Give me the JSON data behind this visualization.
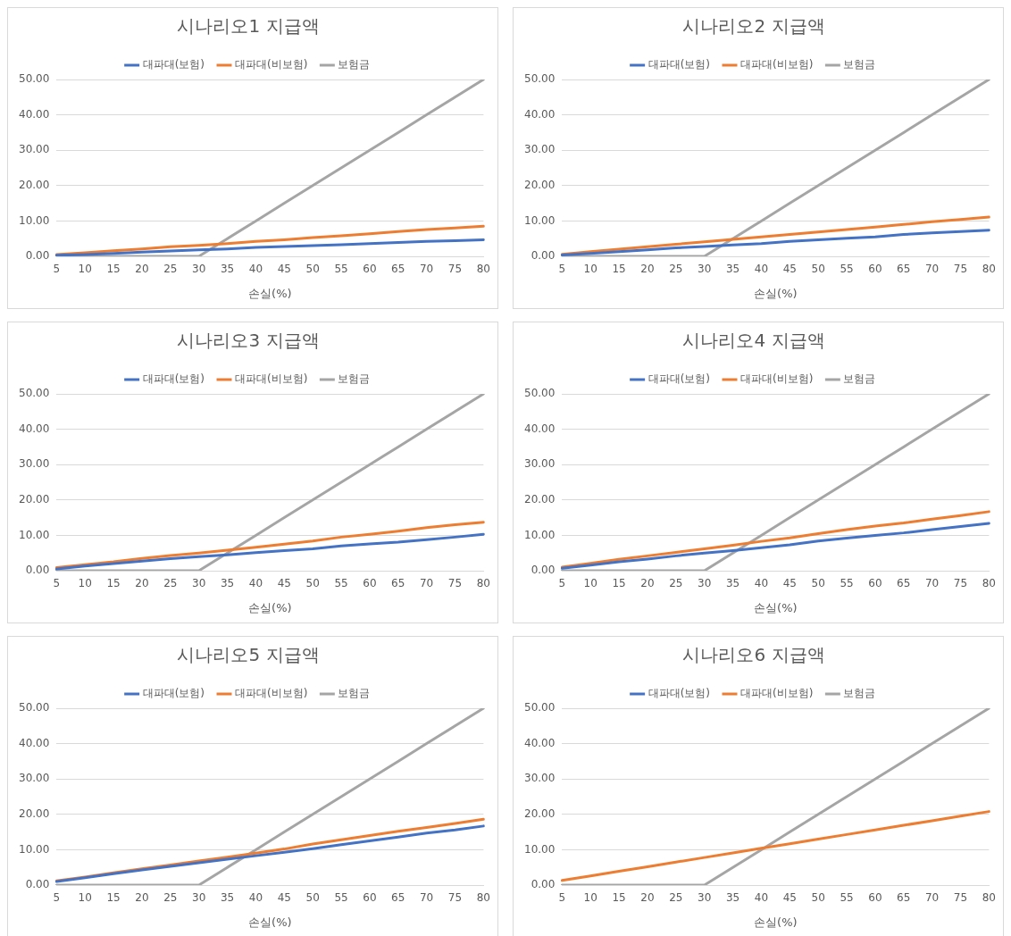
{
  "chart_data": [
    {
      "type": "line",
      "title": "시나리오1 지급액",
      "xlabel": "손실(%)",
      "categories": [
        "5",
        "10",
        "15",
        "20",
        "25",
        "30",
        "35",
        "40",
        "45",
        "50",
        "55",
        "60",
        "65",
        "70",
        "75",
        "80"
      ],
      "ylim": [
        0,
        50
      ],
      "yticks": [
        {
          "value": 0,
          "label": "0.00"
        },
        {
          "value": 10,
          "label": "10.00"
        },
        {
          "value": 20,
          "label": "20.00"
        },
        {
          "value": 30,
          "label": "30.00"
        },
        {
          "value": 40,
          "label": "40.00"
        },
        {
          "value": 50,
          "label": "50.00"
        }
      ],
      "grid": "y",
      "legend": "top",
      "marker": "none",
      "line_style": "solid",
      "series": [
        {
          "name": "대파대(보험)",
          "color": "#4472c4",
          "values": [
            0.3,
            0.5,
            0.8,
            1.2,
            1.5,
            1.8,
            2.1,
            2.5,
            2.8,
            3.0,
            3.3,
            3.6,
            3.9,
            4.2,
            4.4,
            4.7
          ]
        },
        {
          "name": "대파대(비보험)",
          "color": "#ed7d31",
          "values": [
            0.5,
            1.0,
            1.6,
            2.1,
            2.7,
            3.1,
            3.6,
            4.2,
            4.7,
            5.3,
            5.8,
            6.4,
            7.0,
            7.6,
            8.0,
            8.5
          ]
        },
        {
          "name": "보험금",
          "color": "#a5a5a5",
          "values": [
            0,
            0,
            0,
            0,
            0,
            0,
            5,
            10,
            15,
            20,
            25,
            30,
            35,
            40,
            45,
            50
          ]
        }
      ]
    },
    {
      "type": "line",
      "title": "시나리오2 지급액",
      "xlabel": "손실(%)",
      "categories": [
        "5",
        "10",
        "15",
        "20",
        "25",
        "30",
        "35",
        "40",
        "45",
        "50",
        "55",
        "60",
        "65",
        "70",
        "75",
        "80"
      ],
      "ylim": [
        0,
        50
      ],
      "yticks": [
        {
          "value": 0,
          "label": "0.00"
        },
        {
          "value": 10,
          "label": "10.00"
        },
        {
          "value": 20,
          "label": "20.00"
        },
        {
          "value": 30,
          "label": "30.00"
        },
        {
          "value": 40,
          "label": "40.00"
        },
        {
          "value": 50,
          "label": "50.00"
        }
      ],
      "grid": "y",
      "legend": "top",
      "marker": "none",
      "line_style": "solid",
      "series": [
        {
          "name": "대파대(보험)",
          "color": "#4472c4",
          "values": [
            0.4,
            0.8,
            1.3,
            1.8,
            2.4,
            2.8,
            3.2,
            3.6,
            4.2,
            4.7,
            5.1,
            5.5,
            6.2,
            6.6,
            7.0,
            7.4
          ]
        },
        {
          "name": "대파대(비보험)",
          "color": "#ed7d31",
          "values": [
            0.6,
            1.3,
            2.0,
            2.7,
            3.4,
            4.1,
            4.8,
            5.5,
            6.2,
            6.9,
            7.6,
            8.3,
            9.0,
            9.8,
            10.4,
            11.1
          ]
        },
        {
          "name": "보험금",
          "color": "#a5a5a5",
          "values": [
            0,
            0,
            0,
            0,
            0,
            0,
            5,
            10,
            15,
            20,
            25,
            30,
            35,
            40,
            45,
            50
          ]
        }
      ]
    },
    {
      "type": "line",
      "title": "시나리오3 지급액",
      "xlabel": "손실(%)",
      "categories": [
        "5",
        "10",
        "15",
        "20",
        "25",
        "30",
        "35",
        "40",
        "45",
        "50",
        "55",
        "60",
        "65",
        "70",
        "75",
        "80"
      ],
      "ylim": [
        0,
        50
      ],
      "yticks": [
        {
          "value": 0,
          "label": "0.00"
        },
        {
          "value": 10,
          "label": "10.00"
        },
        {
          "value": 20,
          "label": "20.00"
        },
        {
          "value": 30,
          "label": "30.00"
        },
        {
          "value": 40,
          "label": "40.00"
        },
        {
          "value": 50,
          "label": "50.00"
        }
      ],
      "grid": "y",
      "legend": "top",
      "marker": "none",
      "line_style": "solid",
      "series": [
        {
          "name": "대파대(보험)",
          "color": "#4472c4",
          "values": [
            0.5,
            1.3,
            2.0,
            2.7,
            3.4,
            4.0,
            4.5,
            5.1,
            5.7,
            6.2,
            7.0,
            7.6,
            8.1,
            8.8,
            9.5,
            10.3
          ]
        },
        {
          "name": "대파대(비보험)",
          "color": "#ed7d31",
          "values": [
            0.9,
            1.7,
            2.5,
            3.5,
            4.3,
            5.0,
            5.8,
            6.6,
            7.5,
            8.4,
            9.5,
            10.3,
            11.2,
            12.2,
            13.0,
            13.7
          ]
        },
        {
          "name": "보험금",
          "color": "#a5a5a5",
          "values": [
            0,
            0,
            0,
            0,
            0,
            0,
            5,
            10,
            15,
            20,
            25,
            30,
            35,
            40,
            45,
            50
          ]
        }
      ]
    },
    {
      "type": "line",
      "title": "시나리오4 지급액",
      "xlabel": "손실(%)",
      "categories": [
        "5",
        "10",
        "15",
        "20",
        "25",
        "30",
        "35",
        "40",
        "45",
        "50",
        "55",
        "60",
        "65",
        "70",
        "75",
        "80"
      ],
      "ylim": [
        0,
        50
      ],
      "yticks": [
        {
          "value": 0,
          "label": "0.00"
        },
        {
          "value": 10,
          "label": "10.00"
        },
        {
          "value": 20,
          "label": "20.00"
        },
        {
          "value": 30,
          "label": "30.00"
        },
        {
          "value": 40,
          "label": "40.00"
        },
        {
          "value": 50,
          "label": "50.00"
        }
      ],
      "grid": "y",
      "legend": "top",
      "marker": "none",
      "line_style": "solid",
      "series": [
        {
          "name": "대파대(보험)",
          "color": "#4472c4",
          "values": [
            0.7,
            1.6,
            2.5,
            3.3,
            4.2,
            5.0,
            5.7,
            6.5,
            7.3,
            8.4,
            9.2,
            10.0,
            10.7,
            11.6,
            12.5,
            13.4
          ]
        },
        {
          "name": "대파대(비보험)",
          "color": "#ed7d31",
          "values": [
            1.0,
            2.1,
            3.2,
            4.2,
            5.2,
            6.2,
            7.2,
            8.3,
            9.3,
            10.5,
            11.6,
            12.6,
            13.5,
            14.6,
            15.6,
            16.7
          ]
        },
        {
          "name": "보험금",
          "color": "#a5a5a5",
          "values": [
            0,
            0,
            0,
            0,
            0,
            0,
            5,
            10,
            15,
            20,
            25,
            30,
            35,
            40,
            45,
            50
          ]
        }
      ]
    },
    {
      "type": "line",
      "title": "시나리오5 지급액",
      "xlabel": "손실(%)",
      "categories": [
        "5",
        "10",
        "15",
        "20",
        "25",
        "30",
        "35",
        "40",
        "45",
        "50",
        "55",
        "60",
        "65",
        "70",
        "75",
        "80"
      ],
      "ylim": [
        0,
        50
      ],
      "yticks": [
        {
          "value": 0,
          "label": "0.00"
        },
        {
          "value": 10,
          "label": "10.00"
        },
        {
          "value": 20,
          "label": "20.00"
        },
        {
          "value": 30,
          "label": "30.00"
        },
        {
          "value": 40,
          "label": "40.00"
        },
        {
          "value": 50,
          "label": "50.00"
        }
      ],
      "grid": "y",
      "legend": "top",
      "marker": "none",
      "line_style": "solid",
      "series": [
        {
          "name": "대파대(보험)",
          "color": "#4472c4",
          "values": [
            1.0,
            2.1,
            3.2,
            4.3,
            5.3,
            6.3,
            7.3,
            8.3,
            9.3,
            10.3,
            11.4,
            12.5,
            13.6,
            14.7,
            15.6,
            16.7
          ]
        },
        {
          "name": "대파대(비보험)",
          "color": "#ed7d31",
          "values": [
            1.2,
            2.3,
            3.5,
            4.6,
            5.7,
            6.8,
            7.9,
            9.0,
            10.2,
            11.6,
            12.8,
            14.0,
            15.2,
            16.3,
            17.4,
            18.6
          ]
        },
        {
          "name": "보험금",
          "color": "#a5a5a5",
          "values": [
            0,
            0,
            0,
            0,
            0,
            0,
            5,
            10,
            15,
            20,
            25,
            30,
            35,
            40,
            45,
            50
          ]
        }
      ]
    },
    {
      "type": "line",
      "title": "시나리오6 지급액",
      "xlabel": "손실(%)",
      "categories": [
        "5",
        "10",
        "15",
        "20",
        "25",
        "30",
        "35",
        "40",
        "45",
        "50",
        "55",
        "60",
        "65",
        "70",
        "75",
        "80"
      ],
      "ylim": [
        0,
        50
      ],
      "yticks": [
        {
          "value": 0,
          "label": "0.00"
        },
        {
          "value": 10,
          "label": "10.00"
        },
        {
          "value": 20,
          "label": "20.00"
        },
        {
          "value": 30,
          "label": "30.00"
        },
        {
          "value": 40,
          "label": "40.00"
        },
        {
          "value": 50,
          "label": "50.00"
        }
      ],
      "grid": "y",
      "legend": "top",
      "marker": "none",
      "line_style": "solid",
      "series": [
        {
          "name": "대파대(보험)",
          "color": "#4472c4",
          "values": [
            null,
            null,
            null,
            null,
            null,
            null,
            null,
            null,
            null,
            null,
            null,
            null,
            null,
            null,
            null,
            null
          ]
        },
        {
          "name": "대파대(비보험)",
          "color": "#ed7d31",
          "values": [
            1.3,
            2.6,
            3.9,
            5.2,
            6.5,
            7.8,
            9.1,
            10.4,
            11.7,
            13.0,
            14.3,
            15.6,
            16.9,
            18.2,
            19.5,
            20.8
          ]
        },
        {
          "name": "보험금",
          "color": "#a5a5a5",
          "values": [
            0,
            0,
            0,
            0,
            0,
            0,
            5,
            10,
            15,
            20,
            25,
            30,
            35,
            40,
            45,
            50
          ]
        }
      ]
    }
  ]
}
